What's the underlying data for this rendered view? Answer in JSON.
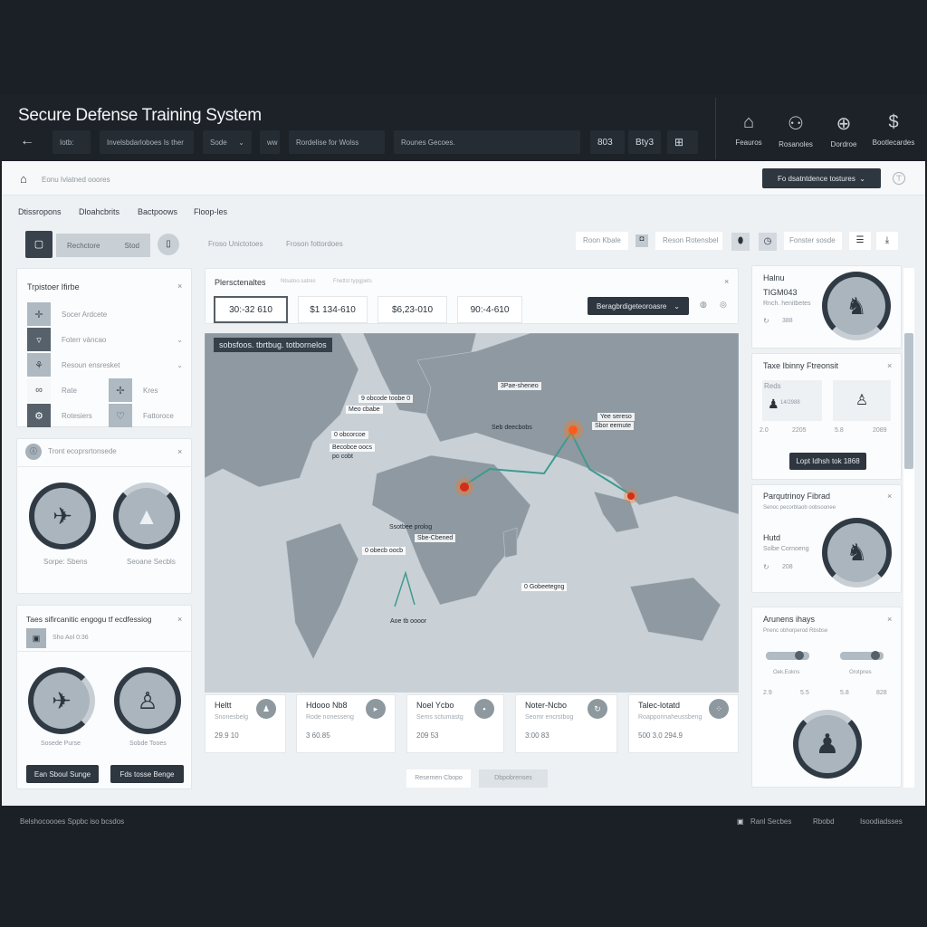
{
  "app": {
    "title": "Secure Defense Training System"
  },
  "toolbar": {
    "back": "←",
    "f1": "Iotb:",
    "f2": "Invelsbdarloboes Is ther",
    "f3": "Sode",
    "f3_arrow": "⌄",
    "f4": "ww",
    "f5": "Rordelise for Wolss",
    "f6": "Rounes Gecoes.",
    "b1": "803",
    "b2": "Bty3",
    "b3": "⊞"
  },
  "header_icons": [
    {
      "icon": "home-alert-icon",
      "glyph": "⌂",
      "label": "Feauros"
    },
    {
      "icon": "users-icon",
      "glyph": "⚇",
      "label": "Rosanoles"
    },
    {
      "icon": "control-icon",
      "glyph": "⊕",
      "label": "Dordroe"
    },
    {
      "icon": "dollar-icon",
      "glyph": "$",
      "label": "Bootlecardes"
    }
  ],
  "breadcrumb": {
    "text": "Eonu Ivlatned ooores",
    "action": "Fo dsatntdence tostures",
    "action_arrow": "⌄"
  },
  "tabs": [
    "Dtissropons",
    "Dloahcbrits",
    "Bactpoows",
    "Floop-les"
  ],
  "filters": {
    "left_label": "Rechctore",
    "left_value": "Stod",
    "link1": "Froso Unictotoes",
    "link2": "Froson fottordoes",
    "right1": "Roon Kbale",
    "right2": "Reson Rotensbel",
    "right3": "Fonster sosde"
  },
  "left": {
    "panel1": {
      "title": "Trpistoer Ifirbe",
      "rows": [
        "Socer Ardcete",
        "Foterr vàncao",
        "Resoun ensresket"
      ],
      "grid": [
        "Rate",
        "Kres",
        "Rotesiers",
        "Fattoroce"
      ]
    },
    "panel2": {
      "title": "Tront ecoprsrtonsede",
      "items": [
        "Sorpe: Sbens",
        "Seoane Secbls"
      ]
    },
    "panel3": {
      "title": "Taes sifircanitic engogu tf ecdfessiog",
      "sub": "Sho Aol 0:36",
      "items": [
        "Sosede Purse",
        "Sobde Tooes"
      ],
      "buttons": [
        "Ean Sboul Sunge",
        "Fds tosse Benge"
      ]
    }
  },
  "center": {
    "tabs": [
      "Plersctenaltes",
      "Ntsatoo.satres",
      "Fnettst typgpets"
    ],
    "stats": [
      "30:-32 610",
      "$1 134-610",
      "$6,23-010",
      "90:-4-610"
    ],
    "dropdown": "Beragbrdigeteoroasre",
    "map": {
      "caption": "sobsfoos. tbrtbug. totbornelos",
      "labels": [
        "9 obcode toobe 0",
        "Meo cbabe",
        "0 obcorcoe",
        "Becobce oocs",
        "po cobt",
        "3Pae-sheneo",
        "Yee sereso",
        "Sbor eemute",
        "Seb deecbobs",
        "Ssotbee prolog",
        "Sbe-Cbened",
        "0 obecb oocb",
        "0 Gobeetegng",
        "Aoe tb oooor"
      ],
      "route_color": "#3f9a8f",
      "marker_color": "#ff7a1a"
    },
    "cards": [
      {
        "title": "Heltt",
        "sub": "Snonesbelg",
        "value": "29.9 10"
      },
      {
        "title": "Hdooo Nb8",
        "sub": "Rode nonesseng",
        "value": "3 60.85"
      },
      {
        "title": "Noel Ycbo",
        "sub": "Sems sctumastg",
        "value": "209 53"
      },
      {
        "title": "Noter-Ncbo",
        "sub": "Seomr encrstbog",
        "value": "3:00 83"
      },
      {
        "title": "Talec-lotatd",
        "sub": "Roapponnaheussbeng",
        "value": "500 3.0 294.9"
      }
    ],
    "buttons": [
      "Resemen Cbopo",
      "Dbpobrenses"
    ]
  },
  "right": {
    "c1": {
      "title": "Halnu",
      "code": "TIGM043",
      "sub": "Rnch. henitbetes",
      "value": "388"
    },
    "c2": {
      "title": "Taxe Ibinny Ftreonsit",
      "tag": "Reds",
      "code": "14/2988",
      "vals": [
        "2.0",
        "2205",
        "5.8",
        "2089"
      ],
      "button": "Lopt Idhsh tok 1868"
    },
    "c3": {
      "title": "Parqutrinoy Fibrad",
      "sub": "Senoc pecorbtaob oobsoonee",
      "name": "Hutd",
      "name_sub": "Solbe Cornoeng",
      "value": "208"
    },
    "c4": {
      "title": "Arunens ihays",
      "sub": "Pnenc obhorperod Rbsbse",
      "s1": "Oek.Eokns",
      "s2": "Orotpnes",
      "vals": [
        "2.9",
        "5.5",
        "5.8",
        "828"
      ],
      "slider1": 0.85,
      "slider2": 0.9
    }
  },
  "footer": {
    "left": "Belshocoooes Sppbc iso bcsdos",
    "r1": "Ranl Secbes",
    "r2": "Rbobd",
    "r3": "Isoodiadsses"
  }
}
